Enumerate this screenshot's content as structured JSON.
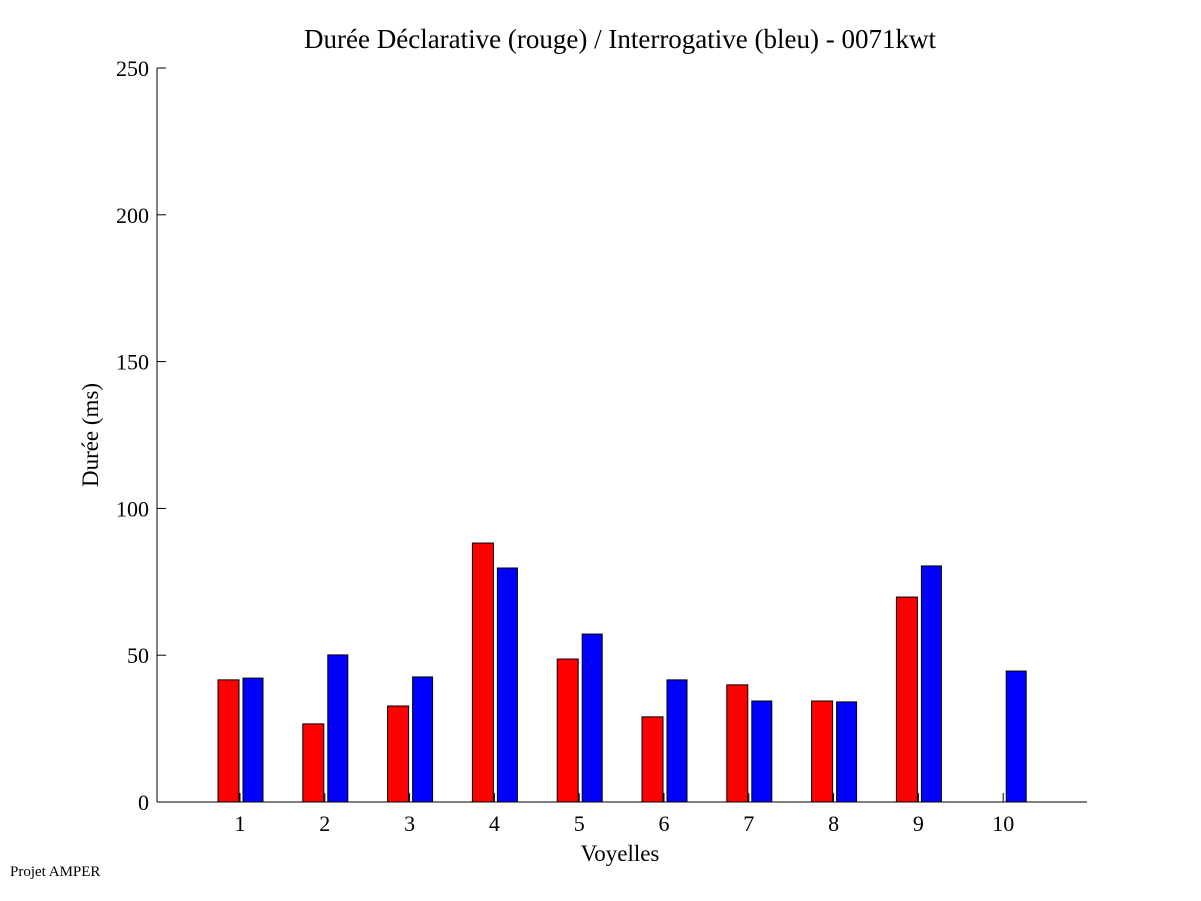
{
  "chart_data": {
    "type": "bar",
    "title": "Durée Déclarative (rouge) / Interrogative (bleu) - 0071kwt",
    "xlabel": "Voyelles",
    "ylabel": "Durée (ms)",
    "ylim": [
      0,
      250
    ],
    "yticks": [
      "0",
      "50",
      "100",
      "150",
      "200",
      "250"
    ],
    "categories": [
      "1",
      "2",
      "3",
      "4",
      "5",
      "6",
      "7",
      "8",
      "9",
      "10"
    ],
    "series": [
      {
        "name": "Déclarative",
        "color": "#ff0000",
        "values": [
          41.6,
          26.6,
          32.7,
          88.2,
          48.7,
          29.0,
          39.9,
          34.4,
          69.8,
          0
        ]
      },
      {
        "name": "Interrogative",
        "color": "#0000ff",
        "values": [
          42.2,
          50.1,
          42.6,
          79.7,
          57.2,
          41.6,
          34.4,
          34.1,
          80.4,
          44.6
        ]
      }
    ],
    "grid": false
  },
  "footer": "Projet AMPER"
}
